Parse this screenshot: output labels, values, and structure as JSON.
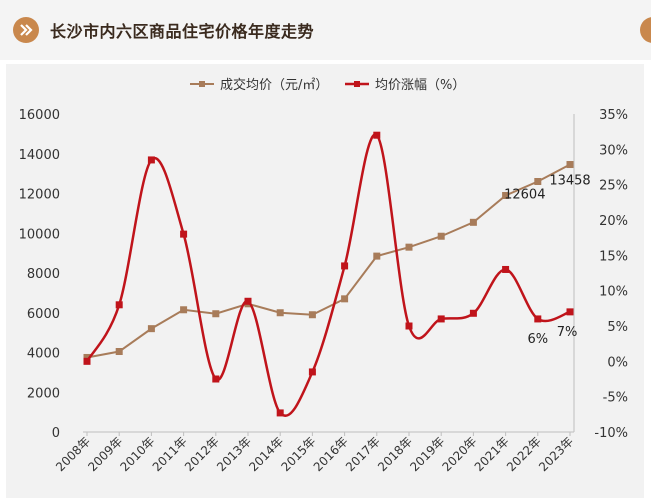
{
  "header": {
    "title": "长沙市内六区商品住宅价格年度走势",
    "accent_color": "#c9884d"
  },
  "chart_data": {
    "type": "line",
    "categories": [
      "2008年",
      "2009年",
      "2010年",
      "2011年",
      "2012年",
      "2013年",
      "2014年",
      "2015年",
      "2016年",
      "2017年",
      "2018年",
      "2019年",
      "2020年",
      "2021年",
      "2022年",
      "2023年"
    ],
    "series": [
      {
        "name": "成交均价（元/㎡）",
        "axis": "left",
        "color": "#a87c5a",
        "marker": "square",
        "smooth": false,
        "values": [
          3750,
          4050,
          5200,
          6150,
          5950,
          6450,
          6000,
          5900,
          6700,
          8850,
          9300,
          9850,
          10550,
          11900,
          12604,
          13458
        ]
      },
      {
        "name": "均价涨幅（%）",
        "axis": "right",
        "color": "#c0141b",
        "marker": "square",
        "smooth": true,
        "values": [
          0,
          8,
          28.5,
          18,
          -2.5,
          8.5,
          -7.3,
          -1.5,
          13.5,
          32,
          5,
          6,
          6.8,
          13,
          6,
          7
        ]
      }
    ],
    "data_labels": [
      {
        "series": 0,
        "index": 14,
        "text": "12604"
      },
      {
        "series": 0,
        "index": 15,
        "text": "13458"
      },
      {
        "series": 1,
        "index": 14,
        "text": "6%"
      },
      {
        "series": 1,
        "index": 15,
        "text": "7%"
      }
    ],
    "y_left": {
      "min": 0,
      "max": 16000,
      "ticks": [
        0,
        2000,
        4000,
        6000,
        8000,
        10000,
        12000,
        14000,
        16000
      ]
    },
    "y_right": {
      "min": -10,
      "max": 35,
      "ticks": [
        -10,
        -5,
        0,
        5,
        10,
        15,
        20,
        25,
        30,
        35
      ],
      "tick_suffix": "%"
    },
    "legend_position": "top",
    "grid": false
  }
}
